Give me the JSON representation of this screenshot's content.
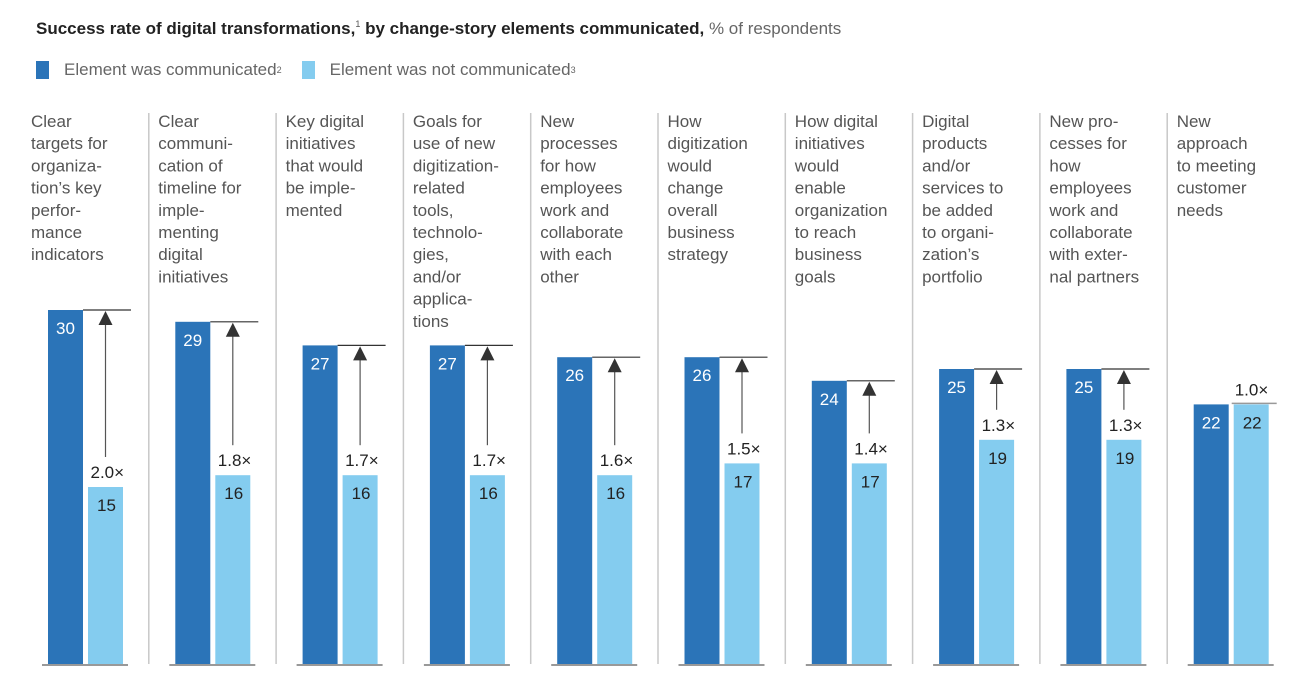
{
  "chart_data": {
    "type": "bar",
    "title": "Success rate of digital transformations,",
    "title_footnote": "1",
    "title_rest": "by change-story elements communicated,",
    "unit": "% of respondents",
    "xlabel": "",
    "ylabel": "",
    "ylim": [
      0,
      30
    ],
    "grid": false,
    "legend_position": "top-left",
    "colors": {
      "communicated": "#2b74b8",
      "not_communicated": "#84ccef",
      "divider": "#c8c8c8",
      "arrow": "#333333"
    },
    "legend": [
      {
        "label": "Element was communicated",
        "footnote": "2"
      },
      {
        "label": "Element was not communicated",
        "footnote": "3"
      }
    ],
    "categories": [
      [
        "Clear",
        "targets for",
        "organiza-",
        "tion’s key",
        "perfor-",
        "mance",
        "indicators"
      ],
      [
        "Clear",
        "communi-",
        "cation of",
        "timeline for",
        "imple-",
        "menting",
        "digital",
        "initiatives"
      ],
      [
        "Key digital",
        "initiatives",
        "that would",
        "be imple-",
        "mented"
      ],
      [
        "Goals for",
        "use of new",
        "digitization-",
        "related",
        "tools,",
        "technolo-",
        "gies,",
        "and/or",
        "applica-",
        "tions"
      ],
      [
        "New",
        "processes",
        "for how",
        "employees",
        "work and",
        "collaborate",
        "with each",
        "other"
      ],
      [
        "How",
        "digitization",
        "would",
        "change",
        "overall",
        "business",
        "strategy"
      ],
      [
        "How digital",
        "initiatives",
        "would",
        "enable",
        "organization",
        "to reach",
        "business",
        "goals"
      ],
      [
        "Digital",
        "products",
        "and/or",
        "services to",
        "be added",
        "to organi-",
        "zation’s",
        "portfolio"
      ],
      [
        "New pro-",
        "cesses for",
        "how",
        "employees",
        "work and",
        "collaborate",
        "with exter-",
        "nal partners"
      ],
      [
        "New",
        "approach",
        "to meeting",
        "customer",
        "needs"
      ]
    ],
    "series": [
      {
        "name": "Element was communicated",
        "values": [
          30,
          29,
          27,
          27,
          26,
          26,
          24,
          25,
          25,
          22
        ]
      },
      {
        "name": "Element was not communicated",
        "values": [
          15,
          16,
          16,
          16,
          16,
          17,
          17,
          19,
          19,
          22
        ]
      }
    ],
    "ratios": [
      "2.0×",
      "1.8×",
      "1.7×",
      "1.7×",
      "1.6×",
      "1.5×",
      "1.4×",
      "1.3×",
      "1.3×",
      "1.0×"
    ]
  }
}
